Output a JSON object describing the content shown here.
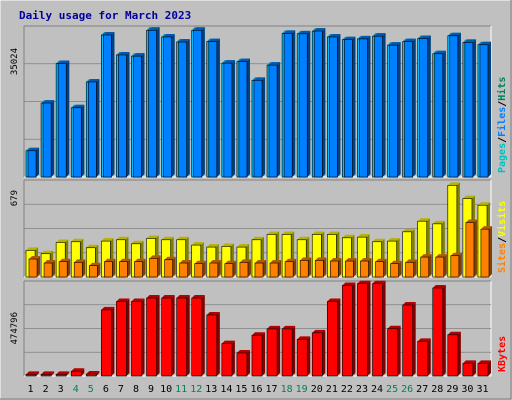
{
  "title": "Daily usage for March 2023",
  "colors": {
    "background": "#c0c0c0",
    "title": "#0000a0",
    "hits": "#00c0ff",
    "files": "#0080ff",
    "pages": "#00c0c0",
    "visits": "#ffff00",
    "sites": "#ff8000",
    "kbytes": "#ff0000",
    "weekday": "#000000",
    "weekend": "#00805c"
  },
  "chart_data": [
    {
      "type": "bar",
      "panel": "hits",
      "y_tick_label": "35024",
      "y_tick_value": 35024,
      "legend": [
        {
          "text": "Pages",
          "color": "#00c0c0"
        },
        {
          "text": "/",
          "color": "#000000"
        },
        {
          "text": "Files",
          "color": "#0080ff"
        },
        {
          "text": "/",
          "color": "#000000"
        },
        {
          "text": "Hits",
          "color": "#00805c"
        }
      ],
      "categories": [
        "1",
        "2",
        "3",
        "4",
        "5",
        "6",
        "7",
        "8",
        "9",
        "10",
        "11",
        "12",
        "13",
        "14",
        "15",
        "16",
        "17",
        "18",
        "19",
        "20",
        "21",
        "22",
        "23",
        "24",
        "25",
        "26",
        "27",
        "28",
        "29",
        "30",
        "31"
      ],
      "series": [
        {
          "name": "Hits",
          "values": [
            6700,
            18900,
            29000,
            17700,
            24300,
            36300,
            31200,
            30900,
            37500,
            35800,
            34500,
            37500,
            34600,
            29100,
            29500,
            24700,
            28600,
            36700,
            36600,
            37300,
            35800,
            35100,
            35300,
            36000,
            33700,
            34600,
            35400,
            31500,
            36100,
            34400,
            33800
          ]
        },
        {
          "name": "Files",
          "values": [
            6700,
            18900,
            29000,
            17700,
            24300,
            36300,
            31200,
            30900,
            37500,
            35800,
            34500,
            37500,
            34600,
            29100,
            29500,
            24700,
            28600,
            36700,
            36600,
            37300,
            35800,
            35100,
            35300,
            36000,
            33700,
            34600,
            35400,
            31500,
            36100,
            34400,
            33800
          ]
        }
      ]
    },
    {
      "type": "bar",
      "panel": "visits",
      "y_tick_label": "679",
      "y_tick_value": 679,
      "legend": [
        {
          "text": "Sites",
          "color": "#ff8000"
        },
        {
          "text": "/",
          "color": "#000000"
        },
        {
          "text": "Visits",
          "color": "#ffff00"
        }
      ],
      "categories": [
        "1",
        "2",
        "3",
        "4",
        "5",
        "6",
        "7",
        "8",
        "9",
        "10",
        "11",
        "12",
        "13",
        "14",
        "15",
        "16",
        "17",
        "18",
        "19",
        "20",
        "21",
        "22",
        "23",
        "24",
        "25",
        "26",
        "27",
        "28",
        "29",
        "30",
        "31"
      ],
      "series": [
        {
          "name": "Visits",
          "values": [
            200,
            175,
            260,
            265,
            220,
            270,
            280,
            250,
            290,
            280,
            280,
            240,
            225,
            230,
            225,
            280,
            320,
            320,
            280,
            320,
            320,
            295,
            300,
            265,
            270,
            340,
            420,
            400,
            690,
            590,
            540
          ]
        },
        {
          "name": "Sites",
          "values": [
            135,
            105,
            115,
            110,
            85,
            115,
            115,
            115,
            140,
            130,
            105,
            100,
            105,
            100,
            110,
            105,
            105,
            115,
            125,
            125,
            120,
            120,
            120,
            115,
            100,
            110,
            150,
            150,
            160,
            410,
            360
          ]
        }
      ]
    },
    {
      "type": "bar",
      "panel": "kbytes",
      "y_tick_label": "474796",
      "y_tick_value": 474796,
      "legend": [
        {
          "text": "KBytes",
          "color": "#ff0000"
        }
      ],
      "categories": [
        "1",
        "2",
        "3",
        "4",
        "5",
        "6",
        "7",
        "8",
        "9",
        "10",
        "11",
        "12",
        "13",
        "14",
        "15",
        "16",
        "17",
        "18",
        "19",
        "20",
        "21",
        "22",
        "23",
        "24",
        "25",
        "26",
        "27",
        "28",
        "29",
        "30",
        "31"
      ],
      "series": [
        {
          "name": "KBytes",
          "values": [
            12000,
            12000,
            12000,
            34000,
            14000,
            473000,
            533000,
            533000,
            558000,
            558000,
            558000,
            558000,
            437000,
            232000,
            165000,
            292000,
            337000,
            337000,
            262000,
            309000,
            533000,
            648000,
            661000,
            661000,
            338000,
            508000,
            248000,
            630000,
            295000,
            90000,
            90000
          ]
        }
      ]
    }
  ]
}
